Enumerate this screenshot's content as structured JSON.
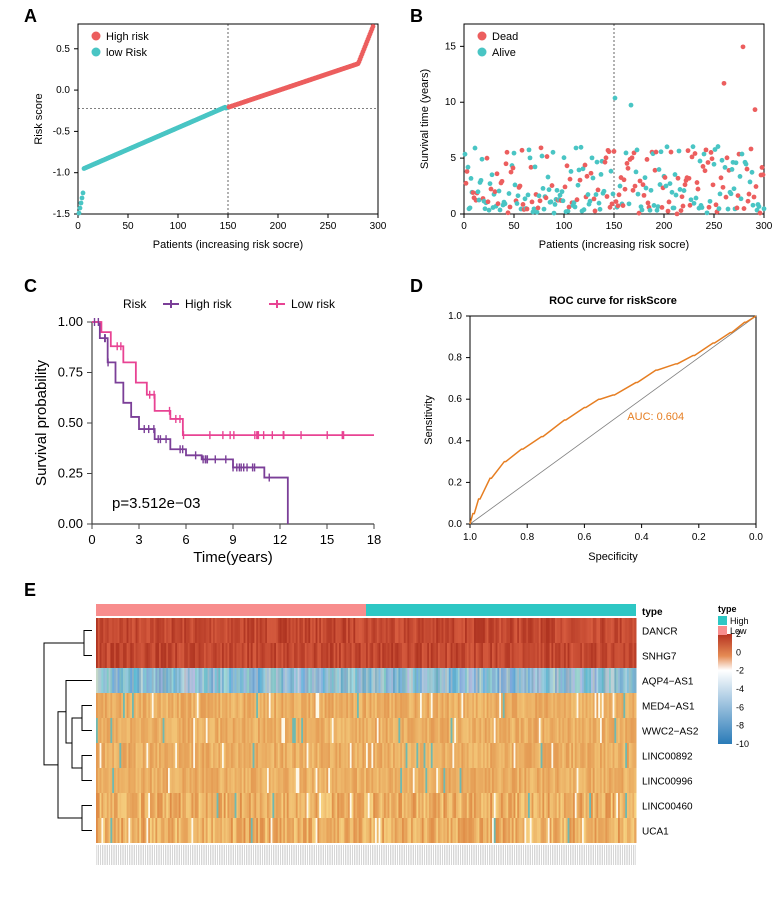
{
  "panelA": {
    "type": "scatter",
    "label": "A",
    "xlabel": "Patients (increasing risk socre)",
    "ylabel": "Risk score",
    "xlim": [
      0,
      300
    ],
    "ylim": [
      -1.5,
      0.8
    ],
    "xticks": [
      0,
      50,
      100,
      150,
      200,
      250,
      300
    ],
    "yticks": [
      -1.5,
      -1.0,
      -0.5,
      0.0,
      0.5
    ],
    "legend": [
      {
        "label": "High risk",
        "color": "#ec5e5e"
      },
      {
        "label": "low Risk",
        "color": "#49c5c4"
      }
    ],
    "cutoff_x": 150,
    "cutoff_y": -0.22,
    "low_color": "#49c5c4",
    "high_color": "#ec5e5e",
    "background_color": "#ffffff",
    "border_color": "#000000",
    "label_fontsize": 11,
    "tick_fontsize": 10
  },
  "panelB": {
    "type": "scatter",
    "label": "B",
    "xlabel": "Patients (increasing risk socre)",
    "ylabel": "Survival time (years)",
    "xlim": [
      0,
      300
    ],
    "ylim": [
      0,
      17
    ],
    "xticks": [
      0,
      50,
      100,
      150,
      200,
      250,
      300
    ],
    "yticks": [
      0,
      5,
      10,
      15
    ],
    "legend": [
      {
        "label": "Dead",
        "color": "#ec5e5e"
      },
      {
        "label": "Alive",
        "color": "#49c5c4"
      }
    ],
    "cutoff_x": 150,
    "dead_color": "#ec5e5e",
    "alive_color": "#49c5c4",
    "background_color": "#ffffff",
    "border_color": "#000000",
    "label_fontsize": 11,
    "tick_fontsize": 10
  },
  "panelC": {
    "type": "survival",
    "label": "C",
    "xlabel": "Time(years)",
    "ylabel": "Survival probability",
    "xlim": [
      0,
      18
    ],
    "ylim": [
      0,
      1
    ],
    "xticks": [
      0,
      3,
      6,
      9,
      12,
      15,
      18
    ],
    "yticks": [
      0.0,
      0.25,
      0.5,
      0.75,
      1.0
    ],
    "legend_title": "Risk",
    "legend": [
      {
        "label": "High risk",
        "color": "#7b3f98"
      },
      {
        "label": "Low risk",
        "color": "#e84393"
      }
    ],
    "pvalue_text": "p=3.512e−03",
    "high_color": "#7b3f98",
    "low_color": "#e84393",
    "background_color": "#ffffff",
    "label_fontsize": 15,
    "tick_fontsize": 13
  },
  "panelD": {
    "type": "roc",
    "label": "D",
    "title": "ROC curve for riskScore",
    "xlabel": "Specificity",
    "ylabel": "Sensitivity",
    "xlim": [
      1.0,
      0.0
    ],
    "ylim": [
      0.0,
      1.0
    ],
    "xticks": [
      1.0,
      0.8,
      0.6,
      0.4,
      0.2,
      0.0
    ],
    "yticks": [
      0.0,
      0.2,
      0.4,
      0.6,
      0.8,
      1.0
    ],
    "auc_text": "AUC: 0.604",
    "curve_color": "#e67e22",
    "diagonal_color": "#808080",
    "background_color": "#ffffff",
    "border_color": "#000000",
    "label_fontsize": 11,
    "tick_fontsize": 10,
    "title_fontsize": 11
  },
  "panelE": {
    "type": "heatmap",
    "label": "E",
    "genes": [
      "DANCR",
      "SNHG7",
      "AQP4−AS1",
      "MED4−AS1",
      "WWC2−AS2",
      "LINC00892",
      "LINC00996",
      "LINC00460",
      "UCA1"
    ],
    "type_label": "type",
    "type_legend": [
      {
        "label": "High",
        "color": "#2dc7c4"
      },
      {
        "label": "Low",
        "color": "#f88d8d"
      }
    ],
    "colorbar": {
      "values": [
        2,
        0,
        -2,
        -4,
        -6,
        -8,
        -10
      ],
      "colors_top": "#b63221",
      "colors_mid": "#ffffff",
      "colors_bottom": "#2a7bb8"
    },
    "gene_row_colors": {
      "DANCR": {
        "base": "#c9442d",
        "variance": "low"
      },
      "SNHG7": {
        "base": "#d05a3a",
        "variance": "low"
      },
      "AQP4-AS1": {
        "base": "#9dbec7",
        "variance": "high"
      },
      "MED4-AS1": {
        "base": "#e6b56a",
        "variance": "med"
      },
      "WWC2-AS2": {
        "base": "#e9c280",
        "variance": "med"
      },
      "LINC00892": {
        "base": "#e9b76e",
        "variance": "med"
      },
      "LINC00996": {
        "base": "#eecb90",
        "variance": "med"
      },
      "LINC00460": {
        "base": "#e0a050",
        "variance": "high"
      },
      "UCA1": {
        "base": "#e5b070",
        "variance": "high"
      }
    },
    "low_type_color": "#f88d8d",
    "high_type_color": "#2dc7c4",
    "n_samples": 300,
    "split_at": 150,
    "gene_fontsize": 10,
    "dendrogram_color": "#000000"
  }
}
